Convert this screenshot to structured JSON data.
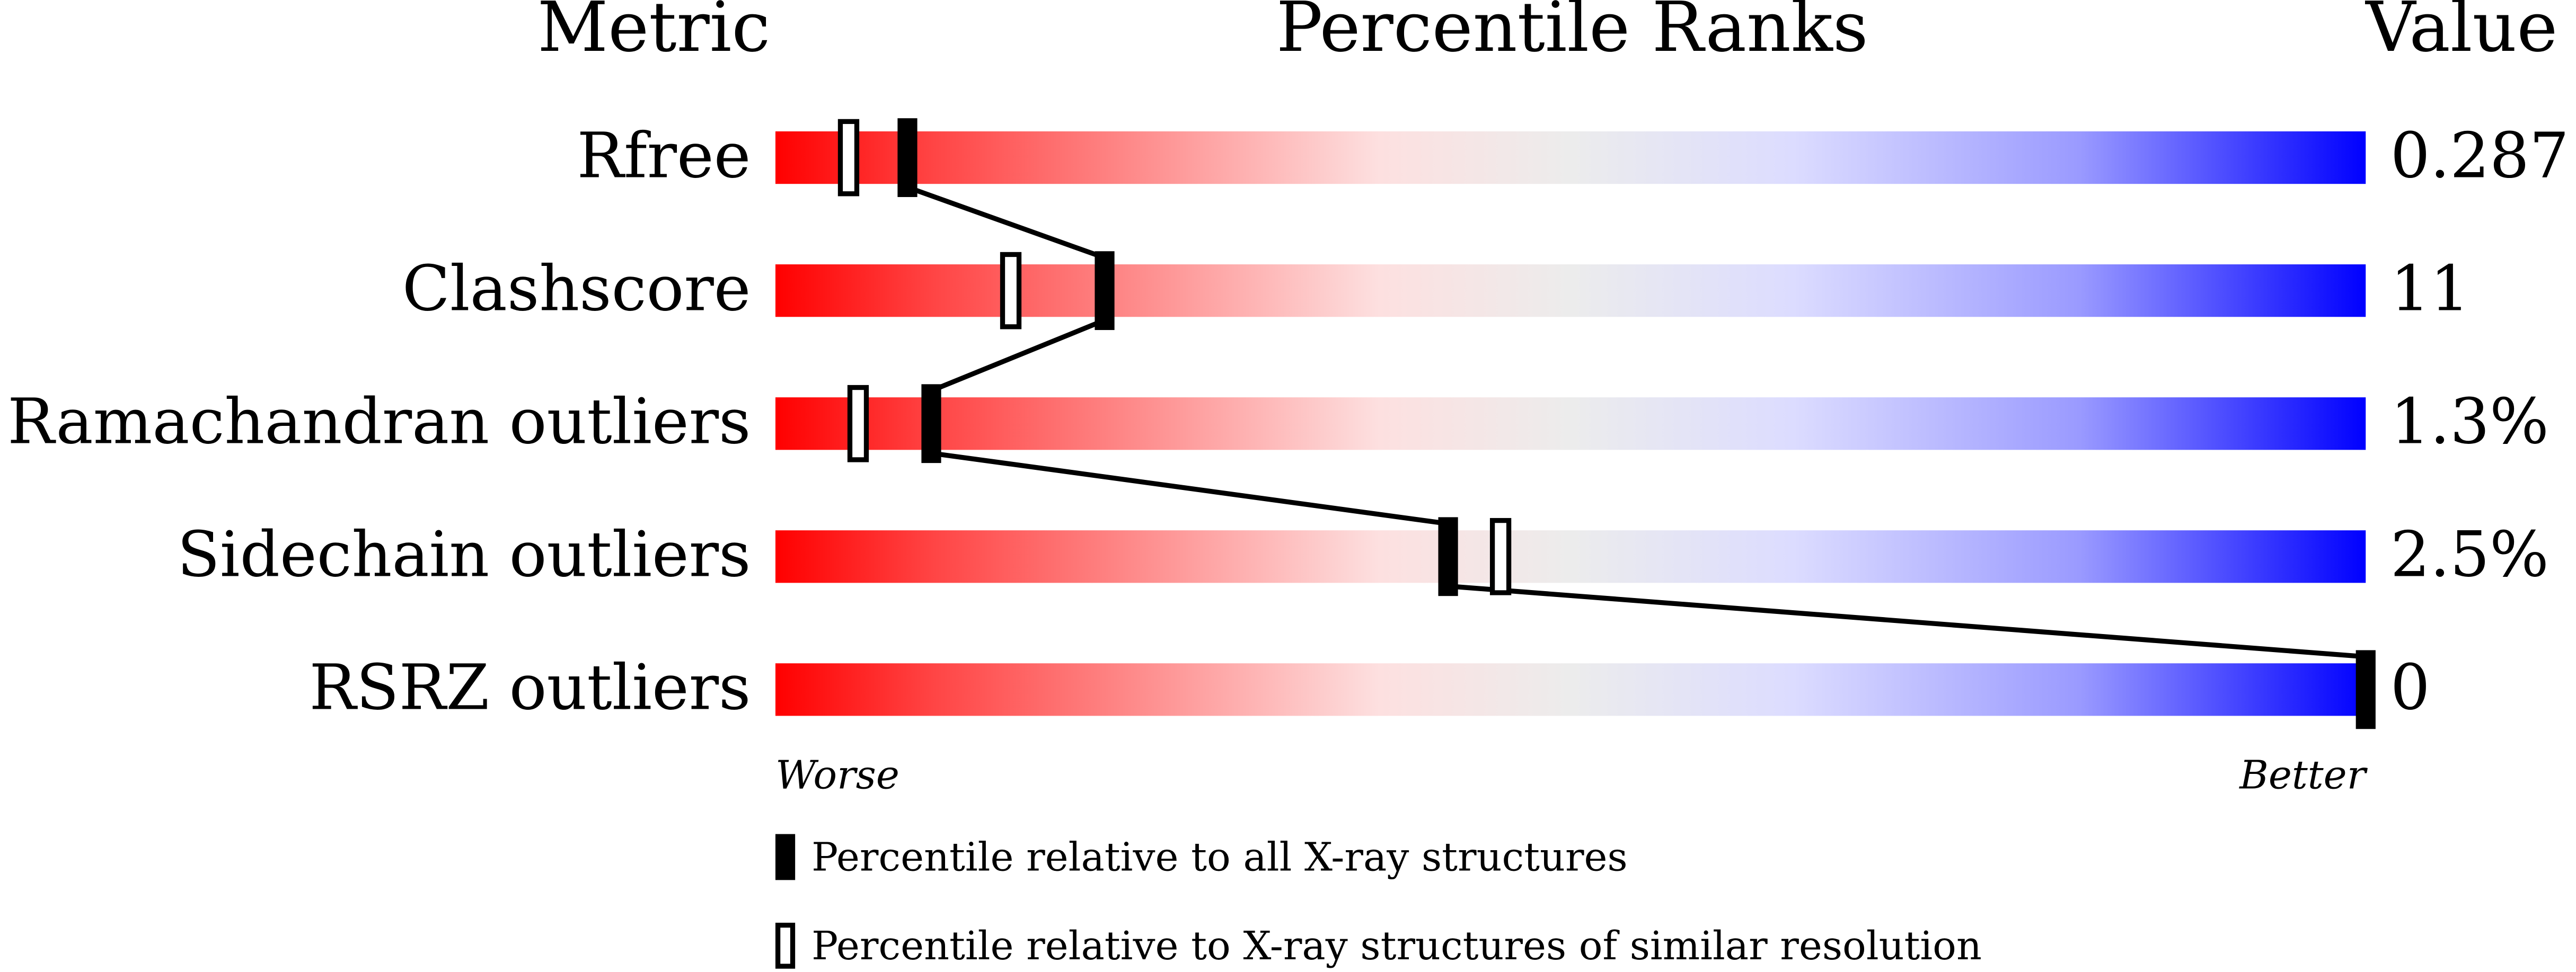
{
  "chart_data": {
    "type": "percentile",
    "headers": {
      "metric": "Metric",
      "ranks": "Percentile Ranks",
      "value": "Value"
    },
    "categories": [
      "Rfree",
      "Clashscore",
      "Ramachandran outliers",
      "Sidechain outliers",
      "RSRZ outliers"
    ],
    "metric_values": [
      "0.287",
      "11",
      "1.3%",
      "2.5%",
      "0"
    ],
    "series": [
      {
        "name": "Percentile relative to all X-ray structures",
        "color": "#000000",
        "style": "filled",
        "values": [
          8.3,
          20.7,
          9.8,
          42.3,
          100
        ]
      },
      {
        "name": "Percentile relative to X-ray structures of similar resolution",
        "color": "#000000",
        "style": "hollow",
        "values": [
          4.6,
          14.8,
          5.2,
          45.6,
          null
        ]
      }
    ],
    "xlim": [
      0,
      100
    ],
    "axis_labels": {
      "low": "Worse",
      "high": "Better"
    }
  }
}
